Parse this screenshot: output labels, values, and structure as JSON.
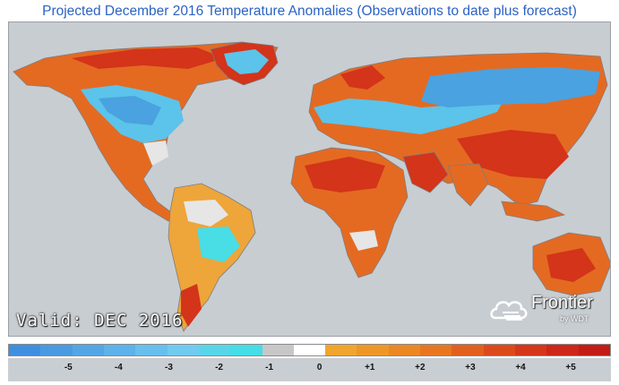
{
  "title": "Projected December 2016 Temperature Anomalies (Observations to date plus forecast)",
  "valid_label": "Valid: DEC 2016",
  "logo": {
    "name": "Frontier",
    "sub": "by WDT"
  },
  "colors": {
    "ocean": "#c8cdd2",
    "border": "#7d7d7d",
    "legend_scale": [
      "#3f8fe0",
      "#4a9ae2",
      "#53a6e6",
      "#5cb2ea",
      "#66bfee",
      "#70cbf1",
      "#57d6ea",
      "#45dde6",
      "#c7c7c7",
      "#ffffff",
      "#f0a62d",
      "#ee9727",
      "#eb8823",
      "#e8761f",
      "#e2601d",
      "#dc4a1b",
      "#d5371a",
      "#cc2718",
      "#c21c17"
    ],
    "anomaly": {
      "very_cold": "#4aa2e0",
      "cold": "#5cc3ea",
      "cool": "#49dde6",
      "neutral": "#e6e6e6",
      "warm": "#eea53a",
      "hot": "#e46a22",
      "very_hot": "#d3341a"
    }
  },
  "legend": {
    "ticks": [
      {
        "label": "-5",
        "value": -5
      },
      {
        "label": "-4",
        "value": -4
      },
      {
        "label": "-3",
        "value": -3
      },
      {
        "label": "-2",
        "value": -2
      },
      {
        "label": "-1",
        "value": -1
      },
      {
        "label": "0",
        "value": 0
      },
      {
        "label": "+1",
        "value": 1
      },
      {
        "label": "+2",
        "value": 2
      },
      {
        "label": "+3",
        "value": 3
      },
      {
        "label": "+4",
        "value": 4
      },
      {
        "label": "+5",
        "value": 5
      }
    ]
  }
}
